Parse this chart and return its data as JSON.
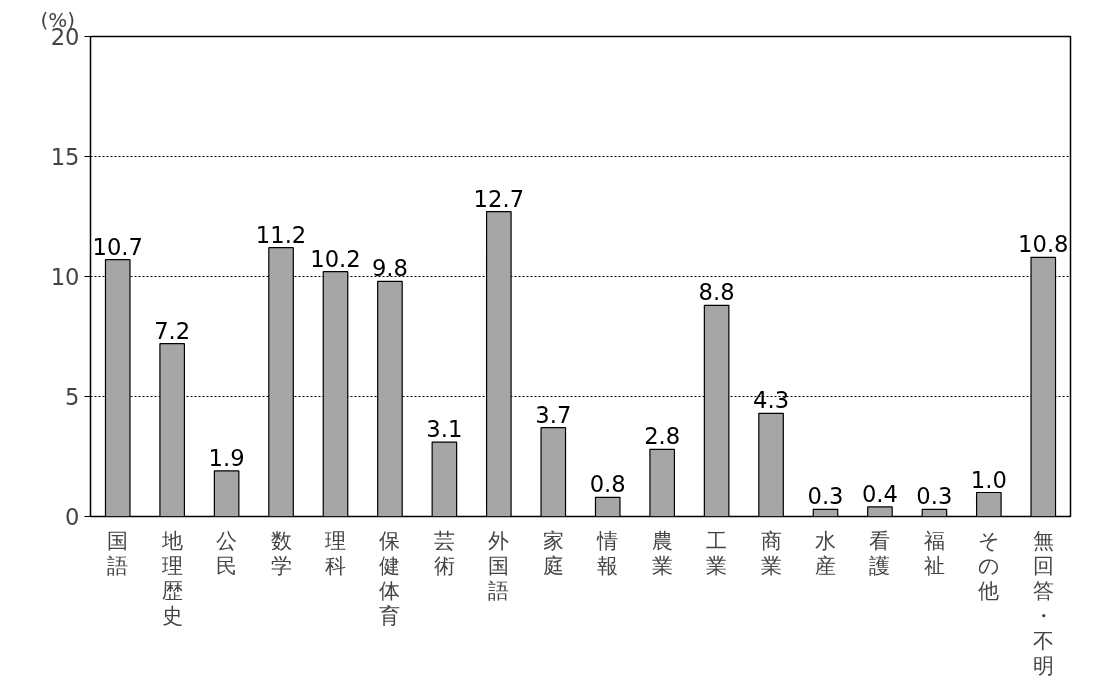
{
  "chart_data": {
    "type": "bar",
    "ylabel": "(%)",
    "categories": [
      "国語",
      "地理歴史",
      "公民",
      "数学",
      "理科",
      "保健体育",
      "芸術",
      "外国語",
      "家庭",
      "情報",
      "農業",
      "工業",
      "商業",
      "水産",
      "看護",
      "福祉",
      "その他",
      "無回答・不明"
    ],
    "values": [
      10.7,
      7.2,
      1.9,
      11.2,
      10.2,
      9.8,
      3.1,
      12.7,
      3.7,
      0.8,
      2.8,
      8.8,
      4.3,
      0.3,
      0.4,
      0.3,
      1.0,
      10.8
    ],
    "value_labels": [
      "10.7",
      "7.2",
      "1.9",
      "11.2",
      "10.2",
      "9.8",
      "3.1",
      "12.7",
      "3.7",
      "0.8",
      "2.8",
      "8.8",
      "4.3",
      "0.3",
      "0.4",
      "0.3",
      "1.0",
      "10.8"
    ],
    "color": "#a6a6a6",
    "ylim": [
      0,
      20
    ],
    "yticks": [
      0,
      5,
      10,
      15,
      20
    ],
    "grid": "y",
    "line_style": "dotted"
  }
}
